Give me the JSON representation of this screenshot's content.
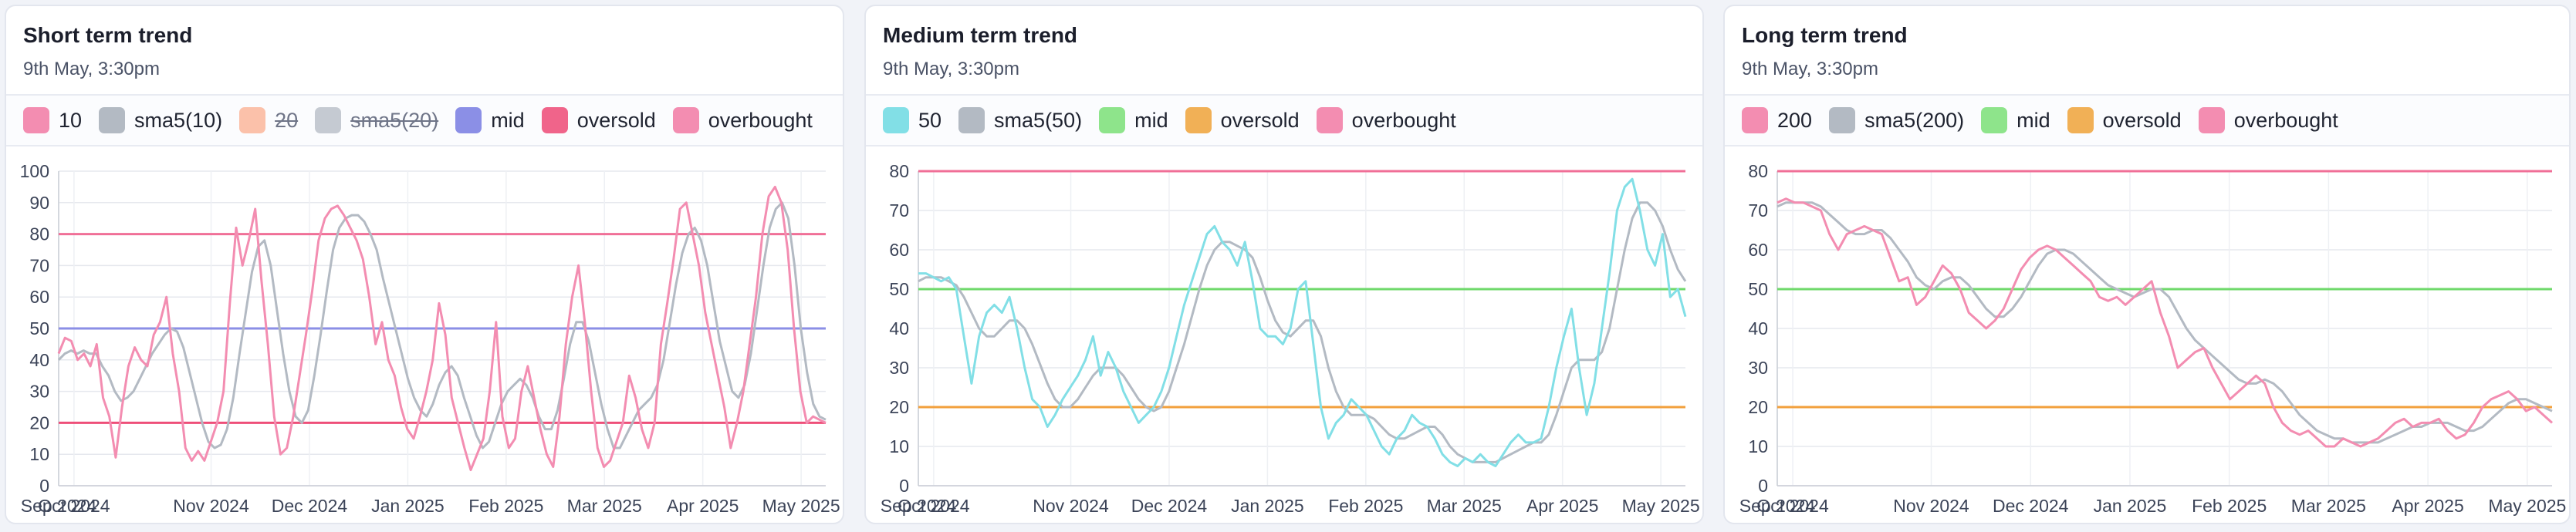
{
  "cards": [
    {
      "title": "Short term trend",
      "subtitle": "9th May, 3:30pm",
      "legend": [
        {
          "label": "10",
          "color": "#f38db1",
          "off": false
        },
        {
          "label": "sma5(10)",
          "color": "#b3bac3",
          "off": false
        },
        {
          "label": "20",
          "color": "#fbae8e",
          "off": true
        },
        {
          "label": "sma5(20)",
          "color": "#b3bac3",
          "off": true
        },
        {
          "label": "mid",
          "color": "#8b8fe6",
          "off": false
        },
        {
          "label": "oversold",
          "color": "#f0648a",
          "off": false
        },
        {
          "label": "overbought",
          "color": "#f38db1",
          "off": false
        }
      ]
    },
    {
      "title": "Medium term trend",
      "subtitle": "9th May, 3:30pm",
      "legend": [
        {
          "label": "50",
          "color": "#82dfe6",
          "off": false
        },
        {
          "label": "sma5(50)",
          "color": "#b3bac3",
          "off": false
        },
        {
          "label": "mid",
          "color": "#8ee48b",
          "off": false
        },
        {
          "label": "oversold",
          "color": "#f1b056",
          "off": false
        },
        {
          "label": "overbought",
          "color": "#f38db1",
          "off": false
        }
      ]
    },
    {
      "title": "Long term trend",
      "subtitle": "9th May, 3:30pm",
      "legend": [
        {
          "label": "200",
          "color": "#f38db1",
          "off": false
        },
        {
          "label": "sma5(200)",
          "color": "#b3bac3",
          "off": false
        },
        {
          "label": "mid",
          "color": "#8ee48b",
          "off": false
        },
        {
          "label": "oversold",
          "color": "#f1b056",
          "off": false
        },
        {
          "label": "overbought",
          "color": "#f38db1",
          "off": false
        }
      ]
    }
  ],
  "chart_data": [
    {
      "type": "line",
      "x_ticks": [
        "Sep 2024",
        "Oct 2024",
        "Nov 2024",
        "Dec 2024",
        "Jan 2025",
        "Feb 2025",
        "Mar 2025",
        "Apr 2025",
        "May 2025"
      ],
      "ylim": [
        0,
        100
      ],
      "y_ticks": [
        0,
        10,
        20,
        30,
        40,
        50,
        60,
        70,
        80,
        90,
        100
      ],
      "reference_lines": [
        {
          "name": "overbought",
          "value": 80,
          "color": "#f06f97"
        },
        {
          "name": "mid",
          "value": 50,
          "color": "#8b8fe6"
        },
        {
          "name": "oversold",
          "value": 20,
          "color": "#ee4f79"
        }
      ],
      "series": [
        {
          "name": "10",
          "color": "#f38db1",
          "values": [
            42,
            47,
            46,
            40,
            42,
            38,
            45,
            28,
            22,
            9,
            25,
            38,
            44,
            40,
            38,
            48,
            52,
            60,
            42,
            30,
            12,
            8,
            11,
            8,
            14,
            20,
            30,
            58,
            82,
            70,
            78,
            88,
            65,
            45,
            22,
            10,
            12,
            22,
            35,
            48,
            62,
            78,
            85,
            88,
            89,
            86,
            82,
            78,
            72,
            60,
            45,
            52,
            40,
            35,
            25,
            18,
            15,
            22,
            30,
            40,
            58,
            48,
            28,
            20,
            12,
            5,
            10,
            15,
            30,
            52,
            22,
            12,
            15,
            30,
            38,
            28,
            18,
            10,
            6,
            22,
            45,
            60,
            70,
            52,
            30,
            12,
            6,
            8,
            14,
            20,
            35,
            28,
            18,
            12,
            20,
            45,
            58,
            72,
            88,
            90,
            80,
            70,
            55,
            45,
            35,
            25,
            12,
            20,
            30,
            45,
            60,
            80,
            92,
            95,
            90,
            75,
            50,
            30,
            20,
            22,
            21,
            20
          ]
        },
        {
          "name": "sma5(10)",
          "color": "#b3bac3",
          "values": [
            40,
            42,
            43,
            42,
            43,
            42,
            42,
            38,
            35,
            30,
            27,
            28,
            30,
            34,
            38,
            42,
            45,
            48,
            50,
            49,
            44,
            36,
            28,
            20,
            14,
            12,
            13,
            18,
            28,
            42,
            55,
            68,
            76,
            78,
            70,
            56,
            42,
            30,
            22,
            20,
            24,
            35,
            48,
            62,
            75,
            82,
            85,
            86,
            86,
            84,
            80,
            75,
            66,
            58,
            50,
            42,
            34,
            28,
            24,
            22,
            26,
            32,
            36,
            38,
            35,
            28,
            22,
            16,
            12,
            14,
            20,
            26,
            30,
            32,
            34,
            32,
            28,
            22,
            18,
            18,
            24,
            34,
            45,
            52,
            52,
            46,
            36,
            26,
            18,
            12,
            12,
            16,
            20,
            24,
            26,
            28,
            32,
            40,
            52,
            64,
            74,
            80,
            82,
            78,
            70,
            58,
            46,
            38,
            30,
            28,
            32,
            42,
            56,
            70,
            82,
            88,
            90,
            85,
            70,
            50,
            36,
            26,
            22,
            21
          ]
        }
      ]
    },
    {
      "type": "line",
      "x_ticks": [
        "Sep 2024",
        "Oct 2024",
        "Nov 2024",
        "Dec 2024",
        "Jan 2025",
        "Feb 2025",
        "Mar 2025",
        "Apr 2025",
        "May 2025"
      ],
      "ylim": [
        0,
        80
      ],
      "y_ticks": [
        0,
        10,
        20,
        30,
        40,
        50,
        60,
        70,
        80
      ],
      "reference_lines": [
        {
          "name": "overbought",
          "value": 80,
          "color": "#f06f97"
        },
        {
          "name": "mid",
          "value": 50,
          "color": "#6fd96b"
        },
        {
          "name": "oversold",
          "value": 20,
          "color": "#f2a03d"
        }
      ],
      "series": [
        {
          "name": "50",
          "color": "#82dfe6",
          "values": [
            54,
            54,
            53,
            52,
            53,
            50,
            38,
            26,
            38,
            44,
            46,
            44,
            48,
            40,
            30,
            22,
            20,
            15,
            18,
            22,
            25,
            28,
            32,
            38,
            28,
            34,
            30,
            24,
            20,
            16,
            18,
            20,
            24,
            30,
            38,
            46,
            52,
            58,
            64,
            66,
            62,
            60,
            56,
            62,
            52,
            40,
            38,
            38,
            36,
            40,
            50,
            52,
            36,
            20,
            12,
            16,
            18,
            22,
            20,
            18,
            14,
            10,
            8,
            12,
            14,
            18,
            16,
            15,
            12,
            8,
            6,
            5,
            7,
            6,
            8,
            6,
            5,
            8,
            11,
            13,
            11,
            11,
            12,
            20,
            30,
            38,
            45,
            30,
            18,
            26,
            40,
            54,
            70,
            76,
            78,
            70,
            60,
            56,
            64,
            48,
            50,
            43
          ]
        },
        {
          "name": "sma5(50)",
          "color": "#b3bac3",
          "values": [
            52,
            53,
            53,
            53,
            52,
            51,
            48,
            44,
            40,
            38,
            38,
            40,
            42,
            42,
            40,
            36,
            31,
            26,
            22,
            20,
            20,
            22,
            25,
            28,
            30,
            30,
            30,
            28,
            25,
            22,
            20,
            19,
            20,
            24,
            30,
            36,
            43,
            50,
            56,
            60,
            62,
            62,
            61,
            60,
            58,
            53,
            47,
            42,
            39,
            38,
            40,
            42,
            42,
            38,
            30,
            24,
            20,
            18,
            18,
            18,
            17,
            15,
            13,
            12,
            12,
            13,
            14,
            15,
            15,
            13,
            10,
            8,
            7,
            6,
            6,
            6,
            6,
            7,
            8,
            9,
            10,
            11,
            11,
            13,
            18,
            24,
            30,
            32,
            32,
            32,
            34,
            40,
            50,
            60,
            68,
            72,
            72,
            70,
            66,
            60,
            55,
            52
          ]
        }
      ]
    },
    {
      "type": "line",
      "x_ticks": [
        "Sep 2024",
        "Oct 2024",
        "Nov 2024",
        "Dec 2024",
        "Jan 2025",
        "Feb 2025",
        "Mar 2025",
        "Apr 2025",
        "May 2025"
      ],
      "ylim": [
        0,
        80
      ],
      "y_ticks": [
        0,
        10,
        20,
        30,
        40,
        50,
        60,
        70,
        80
      ],
      "reference_lines": [
        {
          "name": "overbought",
          "value": 80,
          "color": "#f06f97"
        },
        {
          "name": "mid",
          "value": 50,
          "color": "#6fd96b"
        },
        {
          "name": "oversold",
          "value": 20,
          "color": "#f2a03d"
        }
      ],
      "series": [
        {
          "name": "200",
          "color": "#f38db1",
          "values": [
            72,
            73,
            72,
            72,
            71,
            70,
            64,
            60,
            64,
            65,
            66,
            65,
            64,
            58,
            52,
            53,
            46,
            48,
            52,
            56,
            54,
            50,
            44,
            42,
            40,
            42,
            45,
            50,
            55,
            58,
            60,
            61,
            60,
            58,
            56,
            54,
            52,
            48,
            47,
            48,
            46,
            48,
            50,
            52,
            44,
            38,
            30,
            32,
            34,
            35,
            30,
            26,
            22,
            24,
            26,
            28,
            26,
            20,
            16,
            14,
            13,
            14,
            12,
            10,
            10,
            12,
            11,
            10,
            11,
            12,
            14,
            16,
            17,
            15,
            16,
            16,
            17,
            14,
            12,
            13,
            16,
            20,
            22,
            23,
            24,
            22,
            19,
            20,
            18,
            16
          ]
        },
        {
          "name": "sma5(200)",
          "color": "#b3bac3",
          "values": [
            71,
            72,
            72,
            72,
            72,
            71,
            69,
            67,
            65,
            64,
            64,
            65,
            65,
            63,
            60,
            57,
            53,
            51,
            50,
            52,
            53,
            53,
            51,
            48,
            45,
            43,
            43,
            45,
            48,
            52,
            56,
            59,
            60,
            60,
            59,
            57,
            55,
            53,
            51,
            50,
            49,
            48,
            49,
            50,
            50,
            48,
            44,
            40,
            37,
            35,
            33,
            31,
            29,
            27,
            26,
            26,
            27,
            26,
            24,
            21,
            18,
            16,
            14,
            13,
            12,
            12,
            11,
            11,
            11,
            11,
            12,
            13,
            14,
            15,
            15,
            16,
            16,
            16,
            15,
            14,
            14,
            15,
            17,
            19,
            21,
            22,
            22,
            21,
            20,
            19
          ]
        }
      ]
    }
  ]
}
